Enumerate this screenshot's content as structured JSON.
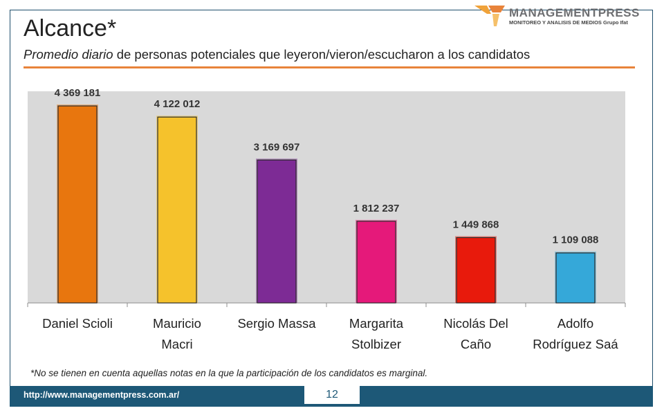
{
  "slide": {
    "title": "Alcance*",
    "subtitle_em": "Promedio diario",
    "subtitle_rest": " de personas potenciales que leyeron/vieron/escucharon a los candidatos",
    "footnote": "*No se tienen en cuenta aquellas notas en la que la participación de los candidatos es marginal.",
    "footer_url": "http://www.managementpress.com.ar/",
    "page_number": "12"
  },
  "logo": {
    "name": "MANAGEMENTPRESS",
    "tagline": "MONITOREO Y ANALISIS DE MEDIOS Grupo Ifat",
    "icon": "managementpress-logo-icon"
  },
  "colors": {
    "accent_rule": "#e8833a",
    "footer": "#1d5877",
    "plot_background": "#d9d9d9"
  },
  "chart_data": {
    "type": "bar",
    "categories": [
      "Daniel Scioli",
      "Mauricio Macri",
      "Sergio Massa",
      "Margarita Stolbizer",
      "Nicolás Del Caño",
      "Adolfo Rodríguez Saá"
    ],
    "category_lines": [
      [
        "Daniel Scioli"
      ],
      [
        "Mauricio",
        "Macri"
      ],
      [
        "Sergio Massa"
      ],
      [
        "Margarita",
        "Stolbizer"
      ],
      [
        "Nicolás Del",
        "Caño"
      ],
      [
        "Adolfo",
        "Rodríguez Saá"
      ]
    ],
    "values": [
      4369181,
      4122012,
      3169697,
      1812237,
      1449868,
      1109088
    ],
    "data_labels": [
      "4 369 181",
      "4 122 012",
      "3 169 697",
      "1 812 237",
      "1 449 868",
      "1 109 088"
    ],
    "bar_colors": [
      "#e8760e",
      "#f5c22c",
      "#7d2b95",
      "#e5197a",
      "#e81a0c",
      "#35a8d9"
    ],
    "ylim": [
      0,
      5000000
    ],
    "grid": false,
    "legend": "none"
  }
}
